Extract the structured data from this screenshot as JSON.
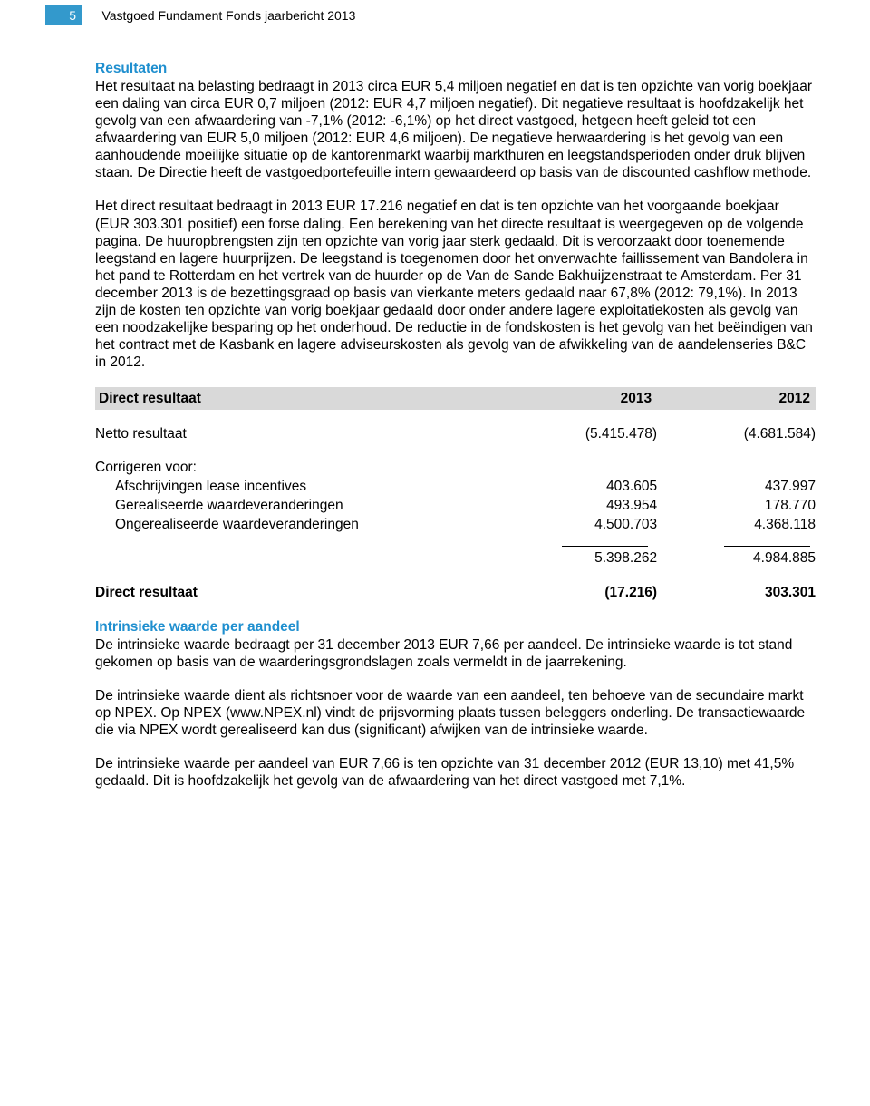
{
  "header": {
    "page_number": "5",
    "doc_title": "Vastgoed Fundament Fonds jaarbericht 2013"
  },
  "section1": {
    "heading": "Resultaten",
    "para1": "Het resultaat na belasting bedraagt in 2013 circa EUR 5,4 miljoen negatief en dat is ten opzichte van vorig boekjaar een daling van circa EUR 0,7 miljoen (2012: EUR 4,7 miljoen negatief). Dit negatieve resultaat is hoofdzakelijk het gevolg van een afwaardering van -7,1% (2012: -6,1%) op het direct vastgoed, hetgeen heeft geleid tot een afwaardering van EUR 5,0 miljoen (2012: EUR 4,6 miljoen). De negatieve herwaardering is het gevolg van een aanhoudende moeilijke situatie op de kantorenmarkt waarbij markthuren en leegstandsperioden onder druk blijven staan. De Directie heeft de vastgoedportefeuille intern gewaardeerd op basis van de discounted cashflow methode.",
    "para2": "Het direct resultaat bedraagt in 2013 EUR 17.216 negatief en dat is ten opzichte van het voorgaande boekjaar (EUR 303.301 positief) een forse daling. Een berekening van het directe resultaat is weergegeven op de volgende pagina. De huuropbrengsten zijn ten opzichte van vorig jaar sterk gedaald. Dit is veroorzaakt door toenemende leegstand en lagere huurprijzen. De leegstand is toegenomen door het onverwachte faillissement van Bandolera in het pand te Rotterdam en het vertrek van de huurder op de Van de Sande Bakhuijzenstraat te Amsterdam. Per 31 december 2013 is de bezettingsgraad op basis van vierkante meters gedaald naar 67,8% (2012: 79,1%). In 2013 zijn de kosten ten opzichte van vorig boekjaar gedaald door onder andere lagere exploitatiekosten als gevolg van een noodzakelijke besparing op het onderhoud. De reductie in de fondskosten is het gevolg van het beëindigen van het contract met de Kasbank en lagere adviseurskosten als gevolg van de afwikkeling van de aandelenseries B&C in 2012."
  },
  "table": {
    "header": {
      "label": "Direct resultaat",
      "y2013": "2013",
      "y2012": "2012"
    },
    "rows": [
      {
        "label": "Netto resultaat",
        "y2013": "(5.415.478)",
        "y2012": "(4.681.584)"
      }
    ],
    "corrigeren_label": "Corrigeren voor:",
    "adjustments": [
      {
        "label": "Afschrijvingen lease incentives",
        "y2013": "403.605",
        "y2012": "437.997"
      },
      {
        "label": "Gerealiseerde waardeveranderingen",
        "y2013": "493.954",
        "y2012": "178.770"
      },
      {
        "label": "Ongerealiseerde waardeveranderingen",
        "y2013": "4.500.703",
        "y2012": "4.368.118"
      }
    ],
    "subtotal": {
      "y2013": "5.398.262",
      "y2012": "4.984.885"
    },
    "total": {
      "label": "Direct resultaat",
      "y2013": "(17.216)",
      "y2012": "303.301"
    }
  },
  "section2": {
    "heading": "Intrinsieke waarde per aandeel",
    "para1": "De intrinsieke waarde bedraagt per 31 december 2013 EUR 7,66 per aandeel. De intrinsieke waarde is tot stand gekomen op basis van de waarderingsgrondslagen zoals vermeldt in de jaarrekening.",
    "para2": "De intrinsieke waarde dient als richtsnoer voor de waarde van een aandeel, ten behoeve van de secundaire markt op NPEX. Op NPEX (www.NPEX.nl) vindt de prijsvorming plaats tussen beleggers onderling. De transactiewaarde die via NPEX wordt gerealiseerd kan dus (significant) afwijken van de intrinsieke waarde.",
    "para3": "De intrinsieke waarde per aandeel van EUR 7,66 is ten opzichte van 31 december 2012 (EUR 13,10) met 41,5% gedaald. Dit is hoofdzakelijk het gevolg van de afwaardering van het direct vastgoed met 7,1%."
  }
}
